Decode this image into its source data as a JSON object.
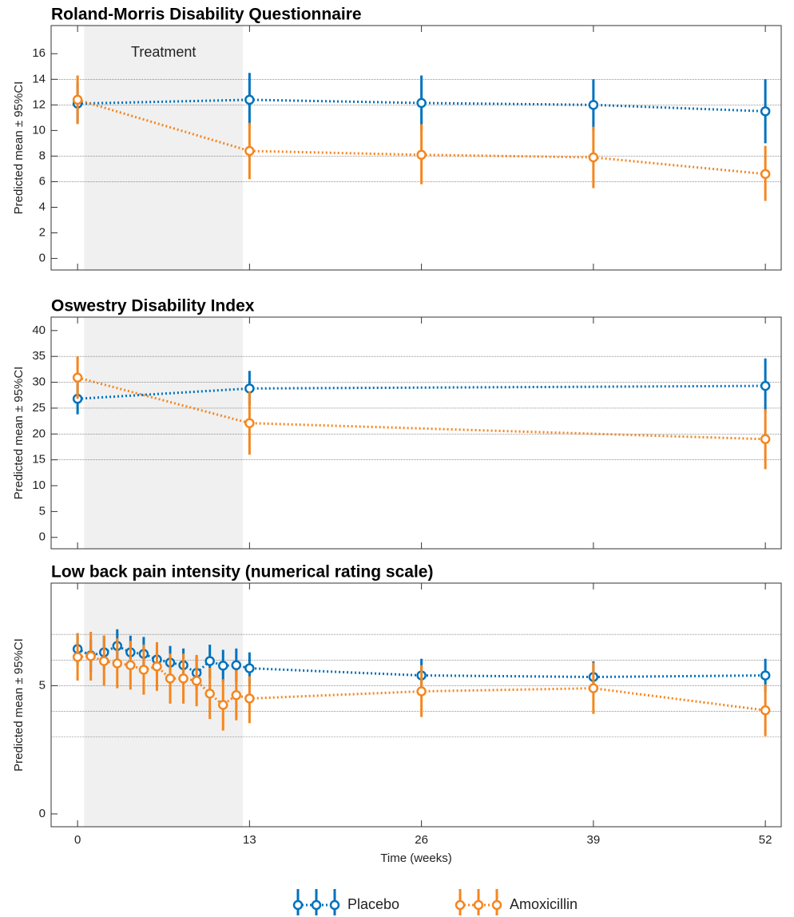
{
  "chart_data": [
    {
      "type": "line",
      "title": "Roland-Morris Disability Questionnaire",
      "ylabel": "Predicted mean ± 95%CI",
      "x": [
        0,
        13,
        26,
        39,
        52
      ],
      "xlim": [
        -2,
        53.2
      ],
      "xticks": [
        0,
        13,
        26,
        39,
        52
      ],
      "ylim": [
        -0.9,
        18.2
      ],
      "yticks": [
        0,
        2,
        4,
        6,
        8,
        10,
        12,
        14,
        16
      ],
      "hlines": [
        6,
        8,
        12,
        14
      ],
      "shade": [
        0.5,
        12.5
      ],
      "shade_label": "Treatment",
      "series": [
        {
          "name": "Placebo",
          "color": "#0072bd",
          "values": [
            12.1,
            12.4,
            12.15,
            12.0,
            11.5
          ],
          "lower": [
            10.6,
            10.4,
            10.0,
            10.0,
            9.0
          ],
          "upper": [
            13.7,
            14.5,
            14.3,
            14.0,
            14.0
          ]
        },
        {
          "name": "Amoxicillin",
          "color": "#f5861f",
          "values": [
            12.4,
            8.4,
            8.1,
            7.9,
            6.6
          ],
          "lower": [
            10.5,
            6.2,
            5.8,
            5.5,
            4.5
          ],
          "upper": [
            14.3,
            10.6,
            10.5,
            10.3,
            8.8
          ]
        }
      ]
    },
    {
      "type": "line",
      "title": "Oswestry Disability Index",
      "ylabel": "Predicted mean ± 95%CI",
      "x": [
        0,
        13,
        52
      ],
      "xlim": [
        -2,
        53.2
      ],
      "xticks": [
        0,
        13,
        26,
        39,
        52
      ],
      "ylim": [
        -2.2,
        42.6
      ],
      "yticks": [
        0,
        5,
        10,
        15,
        20,
        25,
        30,
        35,
        40
      ],
      "hlines": [
        15,
        20,
        25,
        30,
        35
      ],
      "shade": [
        0.5,
        12.5
      ],
      "series": [
        {
          "color": "#0072bd",
          "values": [
            26.8,
            28.8,
            29.3
          ],
          "lower": [
            23.8,
            25.5,
            24.2
          ],
          "upper": [
            30.0,
            32.2,
            34.6
          ]
        },
        {
          "color": "#f5861f",
          "values": [
            30.9,
            22.1,
            19.0
          ],
          "lower": [
            26.8,
            16.0,
            13.2
          ],
          "upper": [
            35.0,
            28.2,
            24.8
          ]
        }
      ]
    },
    {
      "type": "line",
      "title": "Low back pain intensity (numerical rating scale)",
      "ylabel": "Predicted mean ± 95%CI",
      "xlabel": "Time (weeks)",
      "x": [
        0,
        1,
        2,
        3,
        4,
        5,
        6,
        7,
        8,
        9,
        10,
        11,
        12,
        13,
        26,
        39,
        52
      ],
      "xlim": [
        -2,
        53.2
      ],
      "xticks": [
        0,
        13,
        26,
        39,
        52
      ],
      "ylim": [
        -0.5,
        9.0
      ],
      "yticks": [
        0,
        5
      ],
      "hlines": [
        3,
        4,
        5,
        6,
        7
      ],
      "shade": [
        0.5,
        12.5
      ],
      "series": [
        {
          "color": "#0072bd",
          "values": [
            6.43,
            6.18,
            6.3,
            6.55,
            6.3,
            6.24,
            6.02,
            5.9,
            5.8,
            5.5,
            5.96,
            5.78,
            5.8,
            5.68,
            5.4,
            5.34,
            5.4
          ],
          "lower": [
            5.8,
            5.55,
            5.65,
            5.9,
            5.65,
            5.6,
            5.4,
            5.25,
            5.15,
            4.85,
            5.3,
            5.15,
            5.15,
            5.05,
            4.75,
            4.7,
            4.75
          ],
          "upper": [
            7.05,
            6.8,
            6.95,
            7.2,
            6.95,
            6.9,
            6.65,
            6.55,
            6.45,
            6.15,
            6.6,
            6.4,
            6.45,
            6.3,
            6.05,
            5.95,
            6.05
          ]
        },
        {
          "color": "#f5861f",
          "values": [
            6.12,
            6.15,
            5.96,
            5.87,
            5.8,
            5.62,
            5.75,
            5.28,
            5.28,
            5.19,
            4.69,
            4.25,
            4.63,
            4.5,
            4.78,
            4.9,
            4.04
          ],
          "lower": [
            5.2,
            5.2,
            5.0,
            4.9,
            4.85,
            4.65,
            4.8,
            4.3,
            4.3,
            4.2,
            3.7,
            3.25,
            3.65,
            3.54,
            3.78,
            3.9,
            3.03
          ],
          "upper": [
            7.05,
            7.1,
            6.95,
            6.85,
            6.75,
            6.6,
            6.7,
            6.25,
            6.25,
            6.2,
            5.7,
            5.25,
            5.6,
            5.37,
            5.8,
            5.9,
            5.05
          ]
        }
      ]
    }
  ]
}
